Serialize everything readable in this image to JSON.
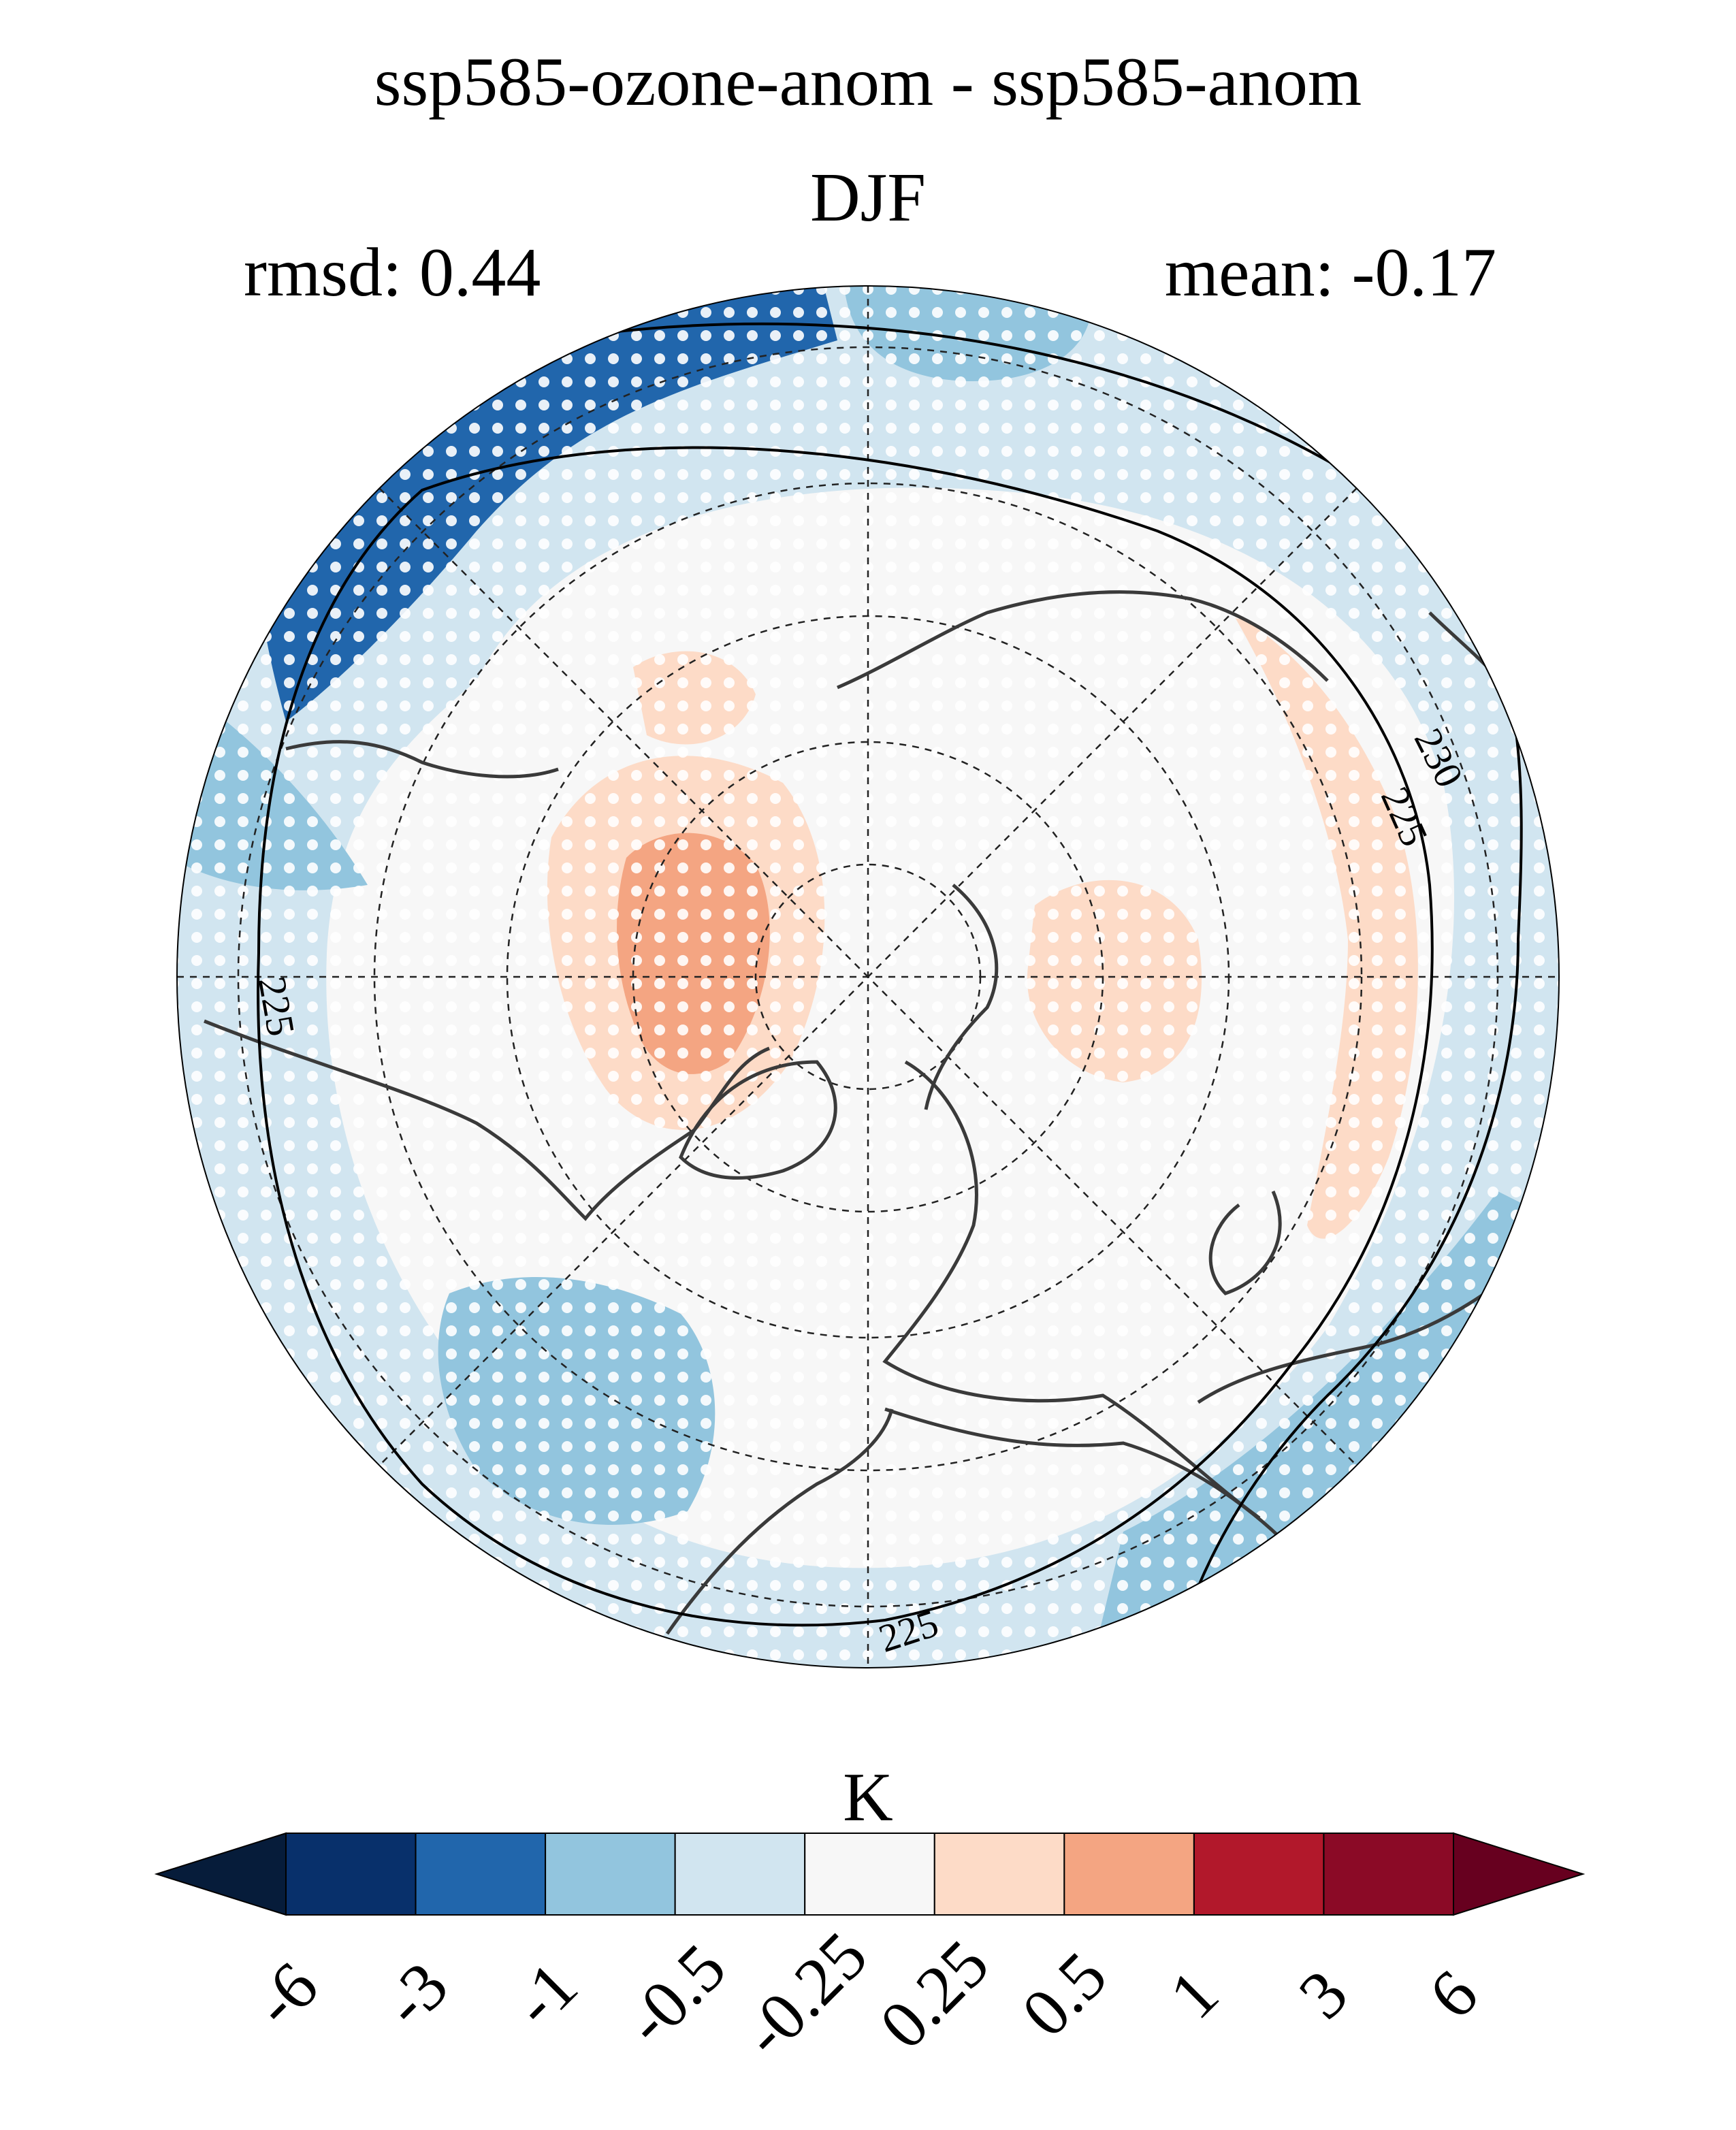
{
  "header": {
    "title": "ssp585-ozone-anom - ssp585-anom",
    "season": "DJF",
    "rmsd": "rmsd: 0.44",
    "mean": "mean: -0.17"
  },
  "map": {
    "projection": "north-polar-stereographic",
    "contour_labels": [
      "230",
      "225",
      "225",
      "225"
    ],
    "stippling": "significance dots",
    "fill_colors": {
      "lt_-6": "#061c3a",
      "-6_-3": "#08306b",
      "-3_-1": "#2166ac",
      "-1_-0.5": "#92c5de",
      "-0.5_-0.25": "#d1e5f0",
      "-0.25_0.25": "#f7f7f7",
      "0.25_0.5": "#fddbc7",
      "0.5_1": "#f4a582",
      "1_3": "#b2182b",
      "3_6": "#8b0a26",
      "gt_6": "#67001f"
    }
  },
  "colorbar": {
    "unit": "K",
    "boundaries": [
      "-6",
      "-3",
      "-1",
      "-0.5",
      "-0.25",
      "0.25",
      "0.5",
      "1",
      "3",
      "6"
    ],
    "colors": [
      "#08306b",
      "#2166ac",
      "#92c5de",
      "#d1e5f0",
      "#f7f7f7",
      "#fddbc7",
      "#f4a582",
      "#b2182b",
      "#8b0a26"
    ],
    "extend_low": "#061c3a",
    "extend_high": "#67001f"
  }
}
